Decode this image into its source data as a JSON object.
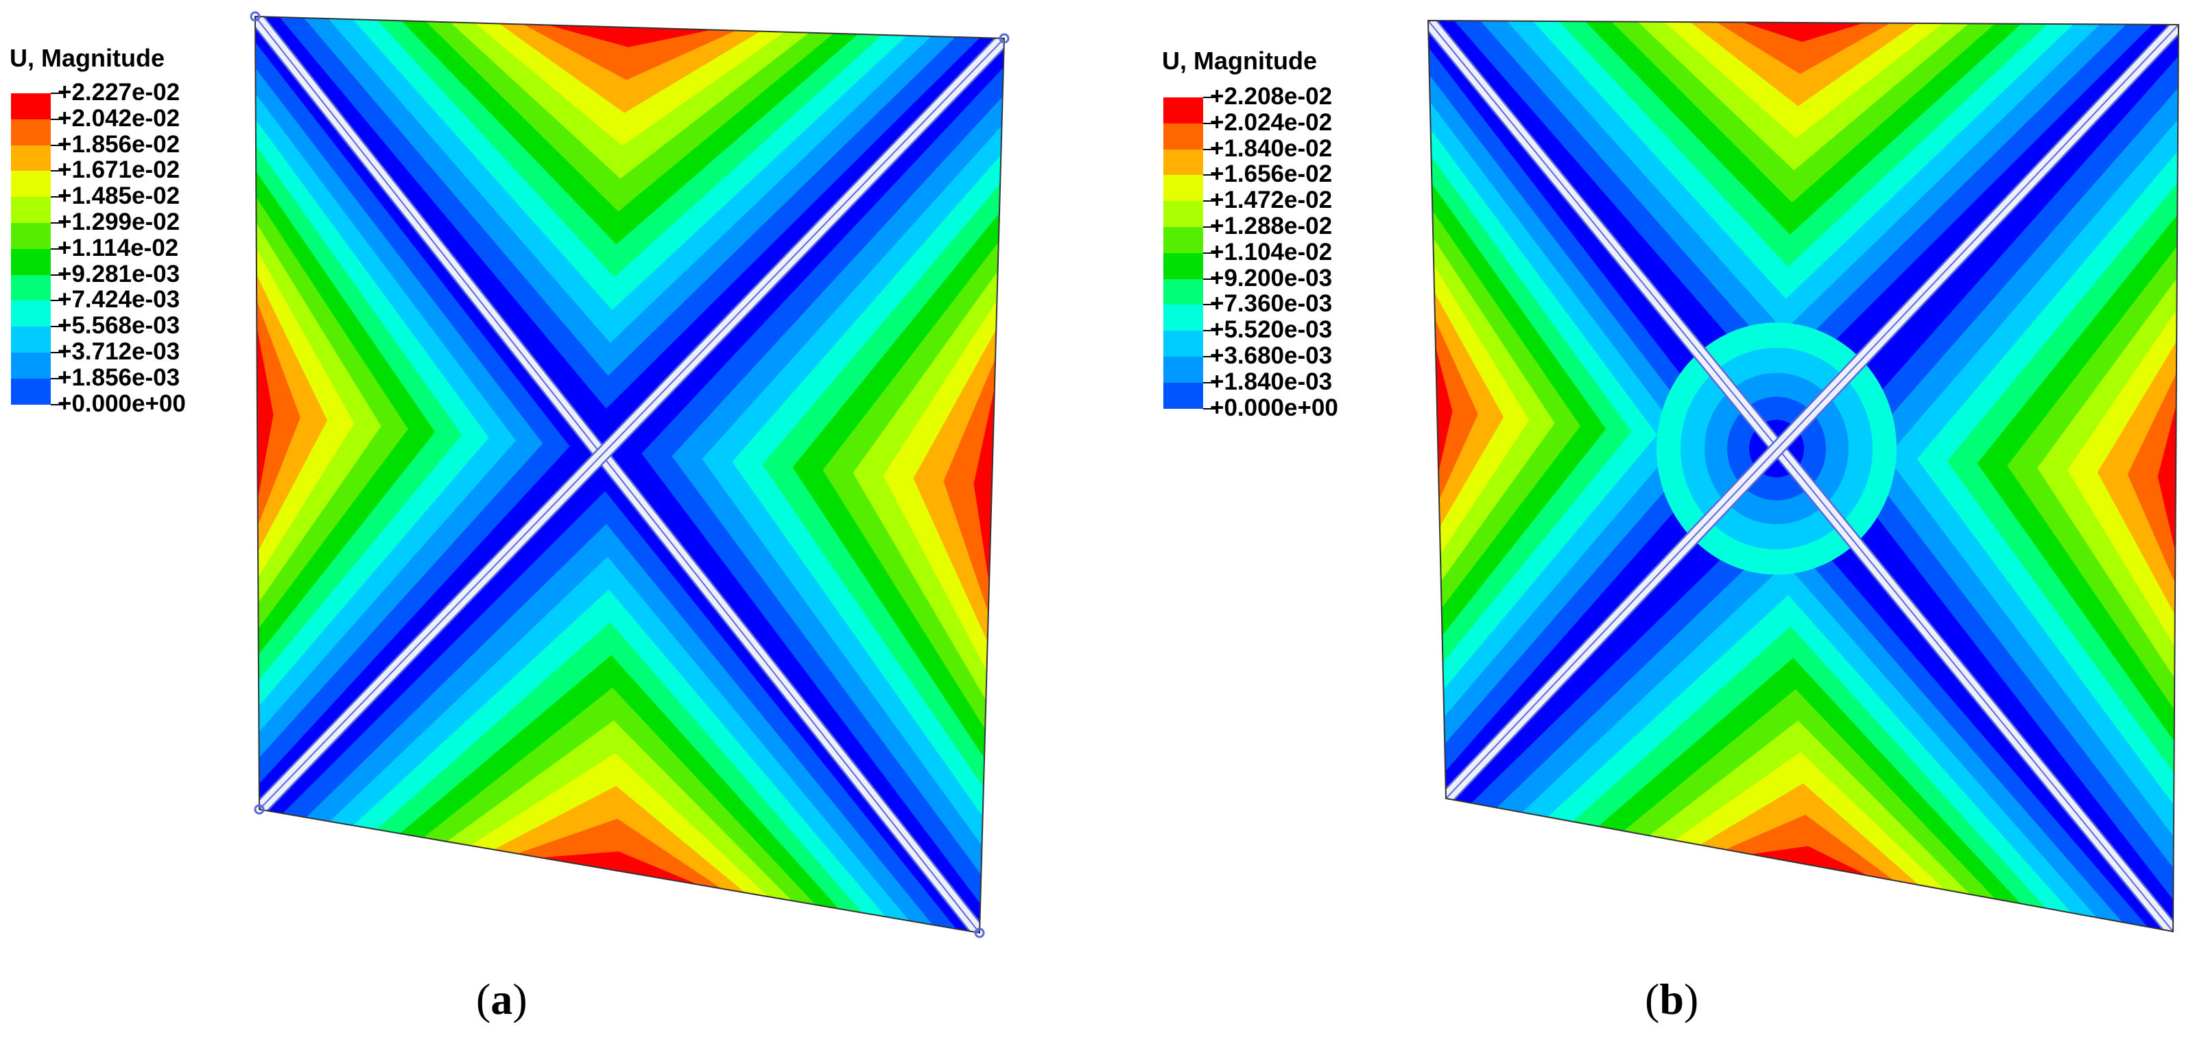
{
  "panels": [
    {
      "id": "a",
      "caption_letter": "a",
      "legend_title": "U, Magnitude",
      "legend_values": [
        "+2.227e-02",
        "+2.042e-02",
        "+1.856e-02",
        "+1.671e-02",
        "+1.485e-02",
        "+1.299e-02",
        "+1.114e-02",
        "+9.281e-03",
        "+7.424e-03",
        "+5.568e-03",
        "+3.712e-03",
        "+1.856e-03",
        "+0.000e+00"
      ]
    },
    {
      "id": "b",
      "caption_letter": "b",
      "legend_title": "U, Magnitude",
      "legend_values": [
        "+2.208e-02",
        "+2.024e-02",
        "+1.840e-02",
        "+1.656e-02",
        "+1.472e-02",
        "+1.288e-02",
        "+1.104e-02",
        "+9.200e-03",
        "+7.360e-03",
        "+5.520e-03",
        "+3.680e-03",
        "+1.840e-03",
        "+0.000e+00"
      ]
    }
  ],
  "colors": {
    "contour_scale": [
      "#ff0000",
      "#ff6600",
      "#ffb000",
      "#e6ff00",
      "#aaff00",
      "#55ee00",
      "#00e000",
      "#00ff77",
      "#00ffdd",
      "#00ccff",
      "#0099ff",
      "#0055ff",
      "#0000ff"
    ],
    "seam": "#eef0ff",
    "seam_edge": "#5a6ad8"
  }
}
